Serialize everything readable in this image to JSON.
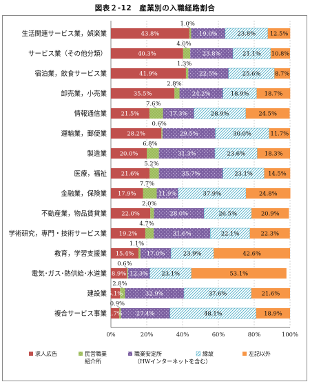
{
  "chart_data": {
    "type": "bar",
    "orientation": "horizontal",
    "stacked": true,
    "title": "図表２-12　産業別の入職経路割合",
    "categories": [
      "生活関連サービス業，娯楽業",
      "サービス業（その他分類）",
      "宿泊業，飲食サービス業",
      "卸売業，小売業",
      "情報通信業",
      "運輸業，郵便業",
      "製造業",
      "医療，福祉",
      "金融業，保険業",
      "不動産業，物品賃貸業",
      "学術研究，専門・技術サービス業",
      "教育，学習支援業",
      "電気･ガス･熱供給･水道業",
      "建設業",
      "複合サービス事業"
    ],
    "series": [
      {
        "name": "求人広告",
        "color": "#c0504d",
        "values": [
          43.8,
          40.3,
          41.9,
          35.5,
          21.5,
          28.2,
          20.0,
          21.6,
          17.9,
          22.0,
          19.2,
          15.4,
          8.9,
          5.1,
          4.7
        ]
      },
      {
        "name": "民営職業\n紹介所",
        "color": "#9bbb59",
        "values": [
          1.0,
          4.0,
          1.3,
          2.8,
          7.6,
          0.6,
          6.8,
          5.2,
          7.7,
          2.0,
          4.7,
          1.1,
          0.6,
          2.8,
          0.9
        ]
      },
      {
        "name": "職業安定所\n（HWインターネットを含む）",
        "color": "#8064a2",
        "values": [
          19.0,
          23.8,
          22.5,
          24.2,
          17.3,
          29.5,
          31.3,
          35.7,
          11.9,
          28.0,
          31.6,
          17.0,
          12.3,
          32.9,
          27.4
        ]
      },
      {
        "name": "縁故",
        "color": "#4bacc6",
        "values": [
          23.8,
          21.1,
          25.6,
          18.9,
          28.9,
          30.0,
          23.6,
          23.1,
          37.9,
          26.5,
          22.1,
          23.9,
          23.1,
          37.6,
          48.1
        ]
      },
      {
        "name": "左記以外",
        "color": "#f79646",
        "values": [
          12.5,
          10.8,
          8.7,
          18.7,
          24.5,
          11.7,
          18.3,
          14.5,
          24.8,
          20.9,
          22.3,
          42.6,
          53.1,
          21.6,
          18.9
        ]
      }
    ],
    "xlim": [
      0,
      100
    ],
    "xticks": [
      "0%",
      "20%",
      "40%",
      "60%",
      "80%",
      "100%"
    ],
    "grid": true,
    "legend_position": "bottom"
  }
}
